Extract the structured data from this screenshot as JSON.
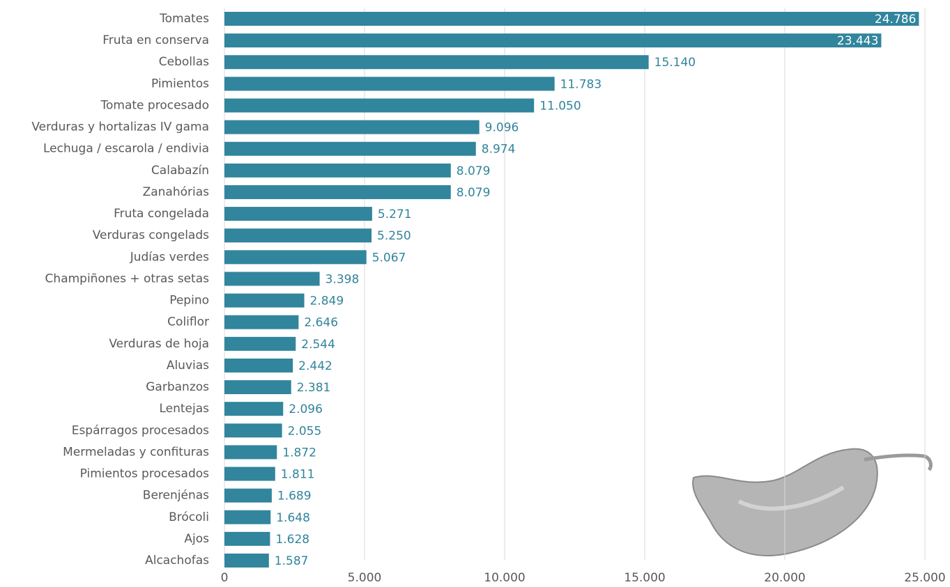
{
  "chart_data": {
    "type": "bar",
    "orientation": "horizontal",
    "categories": [
      "Tomates",
      "Fruta en conserva",
      "Cebollas",
      "Pimientos",
      "Tomate procesado",
      "Verduras y hortalizas IV gama",
      "Lechuga / escarola / endivia",
      "Calabazín",
      "Zanahórias",
      "Fruta congelada",
      "Verduras congelads",
      "Judías verdes",
      "Champiñones + otras setas",
      "Pepino",
      "Coliflor",
      "Verduras de hoja",
      "Aluvias",
      "Garbanzos",
      "Lentejas",
      "Espárragos procesados",
      "Mermeladas y confituras",
      "Pimientos procesados",
      "Berenjénas",
      "Brócoli",
      "Ajos",
      "Alcachofas"
    ],
    "values": [
      24786,
      23443,
      15140,
      11783,
      11050,
      9096,
      8974,
      8079,
      8079,
      5271,
      5250,
      5067,
      3398,
      2849,
      2646,
      2544,
      2442,
      2381,
      2096,
      2055,
      1872,
      1811,
      1689,
      1648,
      1628,
      1587
    ],
    "value_labels": [
      "24.786",
      "23.443",
      "15.140",
      "11.783",
      "11.050",
      "9.096",
      "8.974",
      "8.079",
      "8.079",
      "5.271",
      "5.250",
      "5.067",
      "3.398",
      "2.849",
      "2.646",
      "2.544",
      "2.442",
      "2.381",
      "2.096",
      "2.055",
      "1.872",
      "1.811",
      "1.689",
      "1.648",
      "1.628",
      "1.587"
    ],
    "color": "#31859c",
    "xlim": [
      0,
      25000
    ],
    "xticks": [
      0,
      {
        "value": 5000,
        "label": "5.000"
      },
      {
        "value": 10000,
        "label": "10.000"
      },
      {
        "value": 15000,
        "label": "15.000"
      },
      {
        "value": 20000,
        "label": "20.000"
      },
      {
        "value": 25000,
        "label": "25.000"
      }
    ],
    "grid": true
  }
}
